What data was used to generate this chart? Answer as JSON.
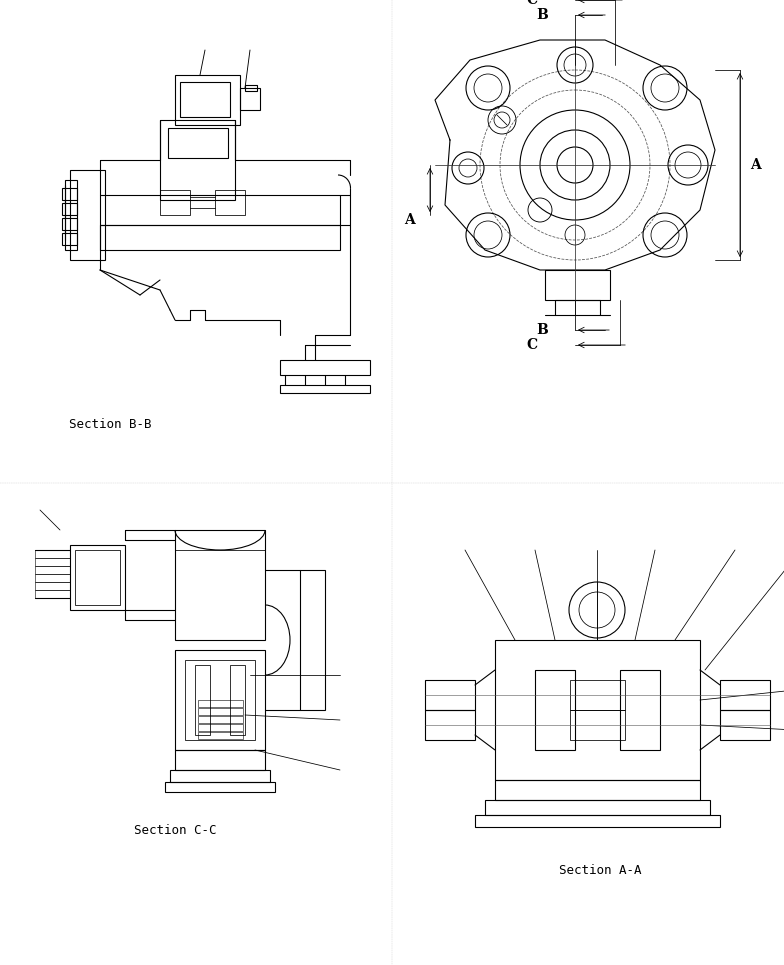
{
  "bg_color": "#ffffff",
  "line_color": "#000000",
  "dashed_color": "#555555",
  "title_font_size": 9,
  "label_font_size": 10,
  "section_labels": [
    "Section B-B",
    "Section C-C",
    "Section A-A"
  ],
  "dim_labels": [
    "A",
    "B",
    "C"
  ],
  "fig_width": 7.84,
  "fig_height": 9.65
}
